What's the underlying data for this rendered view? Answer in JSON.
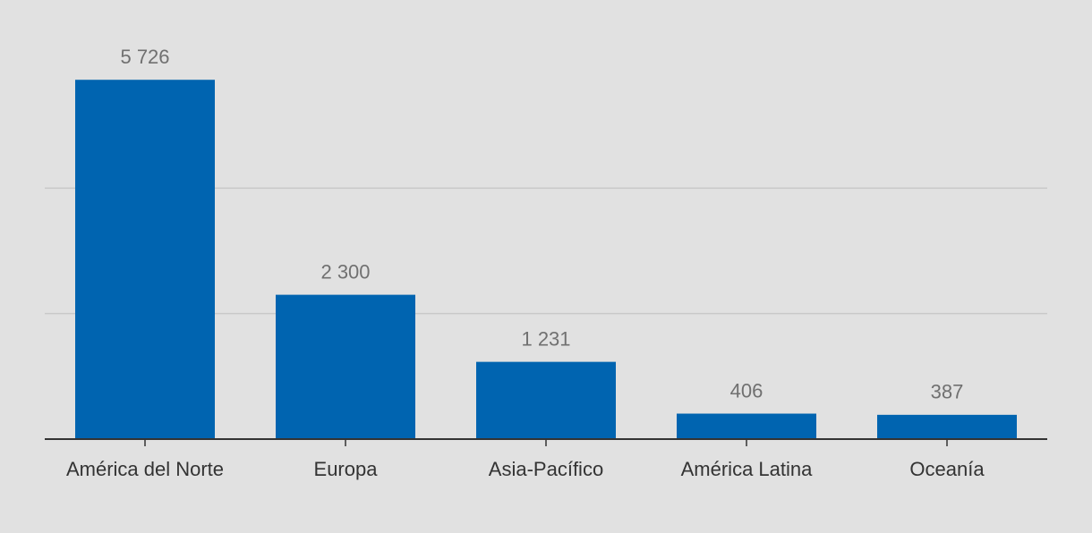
{
  "chart_data": {
    "type": "bar",
    "categories": [
      "América del Norte",
      "Europa",
      "Asia-Pacífico",
      "América Latina",
      "Oceanía"
    ],
    "values": [
      5726,
      2300,
      1231,
      406,
      387
    ],
    "value_labels": [
      "5 726",
      "2 300",
      "1 231",
      "406",
      "387"
    ],
    "color": "#0064b0",
    "ylim": [
      0,
      6000
    ],
    "yticks": [
      0,
      2000,
      4000
    ],
    "show_ytick_labels": false,
    "grid": true
  }
}
